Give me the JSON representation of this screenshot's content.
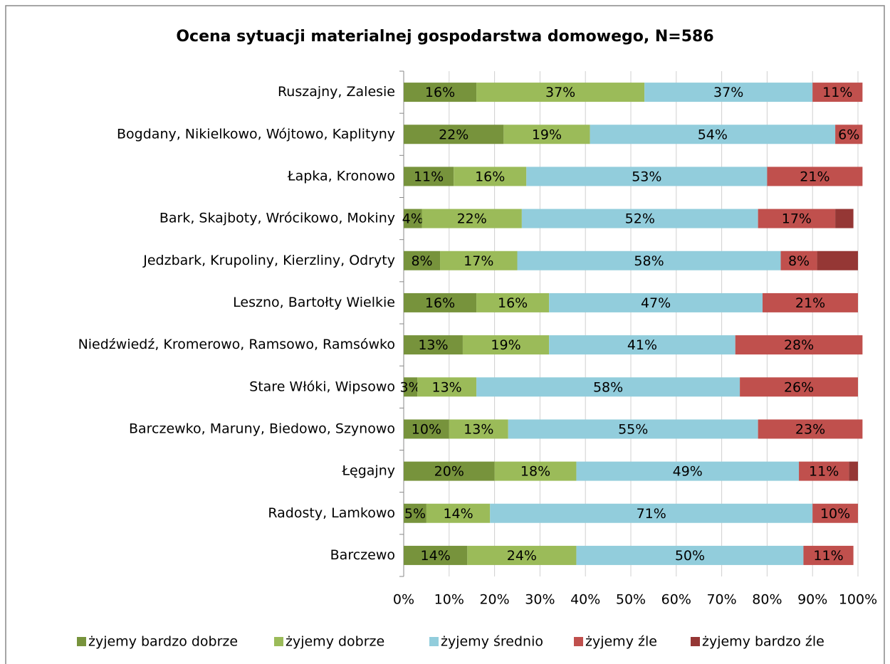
{
  "chart_data": {
    "type": "stacked_bar_horizontal",
    "title": "Ocena sytuacji materialnej gospodarstwa domowego, N=586",
    "categories": [
      "Ruszajny, Zalesie",
      "Bogdany, Nikielkowo, Wójtowo, Kaplityny",
      "Łapka, Kronowo",
      "Bark, Skajboty, Wrócikowo, Mokiny",
      "Jedzbark, Krupoliny, Kierzliny, Odryty",
      "Leszno, Bartołty Wielkie",
      "Niedźwiedź, Kromerowo, Ramsowo, Ramsówko",
      "Stare Włóki, Wipsowo",
      "Barczewko, Maruny, Biedowo, Szynowo",
      "Łęgajny",
      "Radosty, Lamkowo",
      "Barczewo"
    ],
    "series": [
      {
        "name": "żyjemy bardzo dobrze",
        "color": "#77933c",
        "values": [
          16,
          22,
          11,
          4,
          8,
          16,
          13,
          3,
          10,
          20,
          5,
          14
        ],
        "value_labels": [
          "16%",
          "22%",
          "11%",
          "4%",
          "8%",
          "16%",
          "13%",
          "3%",
          "10%",
          "20%",
          "5%",
          "14%"
        ]
      },
      {
        "name": "żyjemy dobrze",
        "color": "#9bbb59",
        "values": [
          37,
          19,
          16,
          22,
          17,
          16,
          19,
          13,
          13,
          18,
          14,
          24
        ],
        "value_labels": [
          "37%",
          "19%",
          "16%",
          "22%",
          "17%",
          "16%",
          "19%",
          "13%",
          "13%",
          "18%",
          "14%",
          "24%"
        ]
      },
      {
        "name": "żyjemy średnio",
        "color": "#92cddc",
        "values": [
          37,
          54,
          53,
          52,
          58,
          47,
          41,
          58,
          55,
          49,
          71,
          50
        ],
        "value_labels": [
          "37%",
          "54%",
          "53%",
          "52%",
          "58%",
          "47%",
          "41%",
          "58%",
          "55%",
          "49%",
          "71%",
          "50%"
        ]
      },
      {
        "name": "żyjemy źle",
        "color": "#c0504d",
        "values": [
          11,
          6,
          21,
          17,
          8,
          21,
          28,
          26,
          23,
          11,
          10,
          11
        ],
        "value_labels": [
          "11%",
          "6%",
          "21%",
          "17%",
          "8%",
          "21%",
          "28%",
          "26%",
          "23%",
          "11%",
          "10%",
          "11%"
        ]
      },
      {
        "name": "żyjemy bardzo źle",
        "color": "#953735",
        "values": [
          null,
          null,
          null,
          4,
          9,
          null,
          null,
          null,
          null,
          2,
          null,
          null
        ],
        "value_labels": [
          null,
          null,
          null,
          null,
          null,
          null,
          null,
          null,
          null,
          null,
          null,
          null
        ]
      }
    ],
    "xlim": [
      0,
      100
    ],
    "xticks": [
      {
        "value": 0,
        "label": "0%"
      },
      {
        "value": 10,
        "label": "10%"
      },
      {
        "value": 20,
        "label": "20%"
      },
      {
        "value": 30,
        "label": "30%"
      },
      {
        "value": 40,
        "label": "40%"
      },
      {
        "value": 50,
        "label": "50%"
      },
      {
        "value": 60,
        "label": "60%"
      },
      {
        "value": 70,
        "label": "70%"
      },
      {
        "value": 80,
        "label": "80%"
      },
      {
        "value": 90,
        "label": "90%"
      },
      {
        "value": 100,
        "label": "100%"
      }
    ],
    "grid": true,
    "legend": "bottom"
  }
}
